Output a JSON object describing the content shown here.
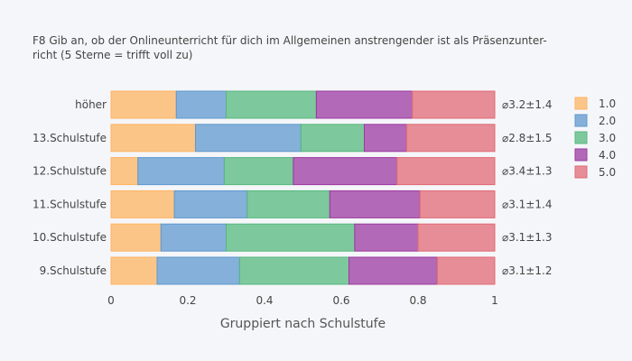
{
  "chart_data": {
    "type": "bar",
    "orientation": "horizontal",
    "barmode": "stack",
    "title_lines": [
      "F8 Gib an, ob der Onlineunterricht für dich im Allgemeinen anstrengender ist als Präsenzunter-",
      "richt (5 Sterne = trifft voll zu)"
    ],
    "xlabel": "Gruppiert nach Schulstufe",
    "xlim": [
      0,
      1
    ],
    "xticks": [
      0,
      0.2,
      0.4,
      0.6,
      0.8,
      1
    ],
    "xtick_labels": [
      "0",
      "0.2",
      "0.4",
      "0.6",
      "0.8",
      "1"
    ],
    "grid": "off",
    "legend_position": "right",
    "categories": [
      "höher",
      "13.Schulstufe",
      "12.Schulstufe",
      "11.Schulstufe",
      "10.Schulstufe",
      "9.Schulstufe"
    ],
    "series": [
      {
        "name": "1.0",
        "color": "#fdb462",
        "values": [
          0.17,
          0.22,
          0.07,
          0.165,
          0.13,
          0.12
        ]
      },
      {
        "name": "2.0",
        "color": "#5f98cd",
        "values": [
          0.13,
          0.275,
          0.225,
          0.19,
          0.17,
          0.215
        ]
      },
      {
        "name": "3.0",
        "color": "#55b87d",
        "values": [
          0.235,
          0.165,
          0.18,
          0.215,
          0.335,
          0.285
        ]
      },
      {
        "name": "4.0",
        "color": "#9b3aa0",
        "values": [
          0.25,
          0.11,
          0.27,
          0.235,
          0.165,
          0.23
        ]
      },
      {
        "name": "5.0",
        "color": "#e06a75",
        "values": [
          0.215,
          0.23,
          0.255,
          0.195,
          0.2,
          0.15
        ]
      }
    ],
    "annotations": [
      "⌀3.2±1.4",
      "⌀2.8±1.5",
      "⌀3.4±1.3",
      "⌀3.1±1.4",
      "⌀3.1±1.3",
      "⌀3.1±1.2"
    ]
  }
}
